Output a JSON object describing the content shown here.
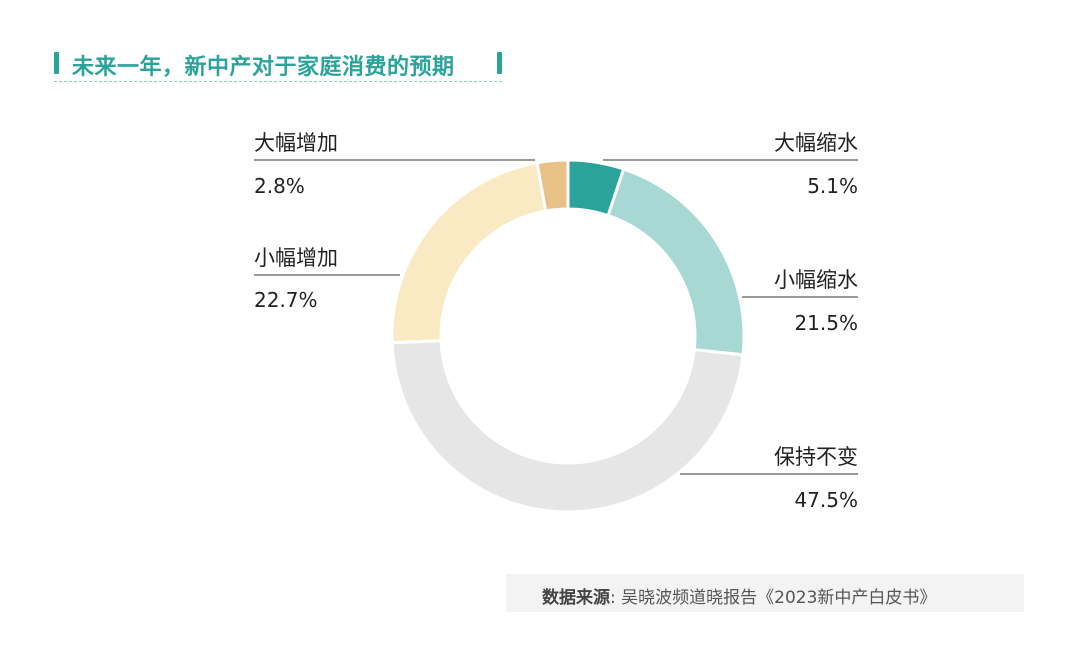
{
  "chart_data": {
    "type": "pie",
    "title": "未来一年，新中产对于家庭消费的预期",
    "donut": true,
    "categories": [
      "大幅缩水",
      "小幅缩水",
      "保持不变",
      "小幅增加",
      "大幅增加"
    ],
    "values": [
      5.1,
      21.5,
      47.5,
      22.7,
      2.8
    ],
    "value_labels": [
      "5.1%",
      "21.5%",
      "47.5%",
      "22.7%",
      "2.8%"
    ],
    "colors": [
      "#2aa39a",
      "#a8d8d4",
      "#e6e6e6",
      "#faeac4",
      "#e8c187"
    ],
    "start": "top",
    "direction": "clockwise"
  },
  "source": {
    "label": "数据来源",
    "text": ": 吴晓波频道晓报告《2023新中产白皮书》"
  }
}
